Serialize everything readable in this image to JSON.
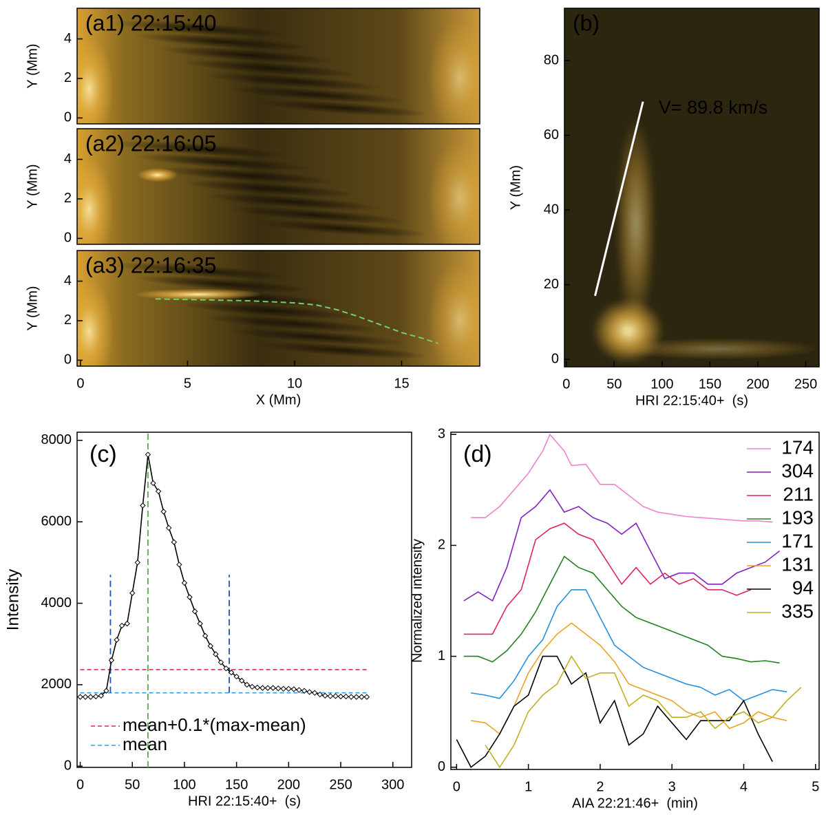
{
  "chart_data": [
    {
      "type": "image",
      "title": "(a1) 22:15:40",
      "xlim": [
        -0.16,
        18.65
      ],
      "ylim": [
        -0.3,
        5.55
      ],
      "yticks": [
        0,
        2,
        4
      ],
      "ylabel": "Y (Mm)"
    },
    {
      "type": "image",
      "title": "(a2) 22:16:05",
      "xlim": [
        -0.16,
        18.65
      ],
      "ylim": [
        -0.3,
        5.55
      ],
      "yticks": [
        0,
        2,
        4
      ],
      "ylabel": "Y (Mm)"
    },
    {
      "type": "image",
      "title": "(a3) 22:16:35",
      "xlim": [
        -0.16,
        18.65
      ],
      "ylim": [
        -0.3,
        5.55
      ],
      "xticks": [
        0,
        5,
        10,
        15
      ],
      "yticks": [
        0,
        2,
        4
      ],
      "xlabel": "X (Mm)",
      "ylabel": "Y (Mm)",
      "curve": {
        "color": "#70d070",
        "x": [
          3.5,
          6,
          8,
          10,
          11,
          12,
          13,
          14,
          15,
          16,
          16.7
        ],
        "y": [
          3.1,
          3.05,
          3.0,
          2.9,
          2.8,
          2.55,
          2.2,
          1.8,
          1.4,
          1.1,
          0.85
        ]
      }
    },
    {
      "type": "image",
      "title": "(b)",
      "xlim": [
        -2,
        264
      ],
      "ylim": [
        -2,
        94
      ],
      "xticks": [
        0,
        50,
        100,
        150,
        200,
        250
      ],
      "yticks": [
        0,
        20,
        40,
        60,
        80
      ],
      "xlabel": "HRI 22:15:40+  (s)",
      "ylabel": "Y (Mm)",
      "fit_line": {
        "color": "#ffffff",
        "x": [
          30,
          80
        ],
        "y": [
          17,
          69
        ]
      },
      "annotation": "V= 89.8 km/s"
    },
    {
      "type": "line",
      "title": "(c)",
      "xlim": [
        -3,
        318
      ],
      "ylim": [
        -30,
        8200
      ],
      "xticks": [
        0,
        50,
        100,
        150,
        200,
        250,
        300
      ],
      "yticks": [
        0,
        2000,
        4000,
        6000,
        8000
      ],
      "xlabel": "HRI 22:15:40+  (s)",
      "ylabel": "Intensity",
      "x": [
        0,
        5,
        10,
        15,
        20,
        25,
        30,
        35,
        40,
        45,
        50,
        55,
        60,
        65,
        70,
        75,
        80,
        85,
        90,
        95,
        100,
        105,
        110,
        115,
        120,
        125,
        130,
        135,
        140,
        145,
        150,
        155,
        160,
        165,
        170,
        175,
        180,
        185,
        190,
        195,
        200,
        205,
        210,
        215,
        220,
        225,
        230,
        235,
        240,
        245,
        250,
        255,
        260,
        265,
        270,
        275
      ],
      "values": [
        1700,
        1700,
        1700,
        1710,
        1730,
        1850,
        2600,
        3100,
        3450,
        3500,
        4250,
        5000,
        6400,
        7650,
        6950,
        6750,
        6250,
        5850,
        5500,
        4950,
        4500,
        4150,
        3800,
        3500,
        3200,
        2950,
        2750,
        2550,
        2400,
        2300,
        2200,
        2100,
        2000,
        1950,
        1930,
        1920,
        1920,
        1920,
        1910,
        1900,
        1900,
        1890,
        1870,
        1850,
        1820,
        1800,
        1760,
        1730,
        1720,
        1720,
        1710,
        1710,
        1700,
        1700,
        1700,
        1700
      ],
      "color": "#000000",
      "reference_lines": [
        {
          "orientation": "h",
          "value": 2370,
          "span": [
            0,
            275
          ],
          "color": "#e0206a",
          "label": "mean+0.1*(max-mean)"
        },
        {
          "orientation": "h",
          "value": 1800,
          "span": [
            0,
            275
          ],
          "color": "#30a0e0",
          "label": "mean"
        },
        {
          "orientation": "v",
          "value": 29,
          "span": [
            1800,
            4700
          ],
          "color": "#2050b0"
        },
        {
          "orientation": "v",
          "value": 143,
          "span": [
            1800,
            4700
          ],
          "color": "#2050b0"
        },
        {
          "orientation": "v",
          "value": 65,
          "span": [
            -30,
            8200
          ],
          "color": "#50b040"
        }
      ]
    },
    {
      "type": "multiline",
      "title": "(d)",
      "xlim": [
        -0.08,
        5.05
      ],
      "ylim": [
        -0.02,
        3.02
      ],
      "xticks": [
        0,
        1,
        2,
        3,
        4,
        5
      ],
      "yticks": [
        0,
        1,
        2,
        3
      ],
      "xlabel": "AIA 22:21:46+  (min)",
      "ylabel": "Normalized intensity",
      "series": [
        {
          "name": "174",
          "color": "#f080d0",
          "x": [
            0.2,
            0.4,
            0.6,
            0.8,
            1.0,
            1.2,
            1.3,
            1.5,
            1.6,
            1.8,
            2.0,
            2.2,
            2.4,
            2.6,
            2.8,
            3.0,
            3.2,
            3.4,
            3.6,
            3.8,
            4.0,
            4.2,
            4.4
          ],
          "values": [
            2.25,
            2.25,
            2.35,
            2.5,
            2.65,
            2.85,
            3.0,
            2.85,
            2.72,
            2.73,
            2.55,
            2.55,
            2.45,
            2.35,
            2.3,
            2.28,
            2.26,
            2.25,
            2.24,
            2.23,
            2.22,
            2.22,
            2.21
          ]
        },
        {
          "name": "304",
          "color": "#8020c0",
          "x": [
            0.1,
            0.3,
            0.5,
            0.7,
            0.9,
            1.1,
            1.3,
            1.5,
            1.7,
            1.9,
            2.1,
            2.3,
            2.5,
            2.7,
            2.9,
            3.1,
            3.3,
            3.5,
            3.7,
            3.9,
            4.1,
            4.3,
            4.5
          ],
          "values": [
            1.5,
            1.58,
            1.5,
            1.8,
            2.25,
            2.35,
            2.5,
            2.3,
            2.35,
            2.25,
            2.2,
            2.1,
            2.2,
            1.95,
            1.7,
            1.75,
            1.75,
            1.65,
            1.65,
            1.75,
            1.8,
            1.85,
            1.95
          ]
        },
        {
          "name": "211",
          "color": "#e0206a",
          "x": [
            0.1,
            0.3,
            0.5,
            0.7,
            0.9,
            1.1,
            1.3,
            1.5,
            1.7,
            1.9,
            2.1,
            2.3,
            2.5,
            2.7,
            2.9,
            3.1,
            3.3,
            3.5,
            3.7,
            3.9,
            4.1
          ],
          "values": [
            1.2,
            1.2,
            1.2,
            1.45,
            1.6,
            2.05,
            2.15,
            2.2,
            2.1,
            2.05,
            1.85,
            1.65,
            1.8,
            1.65,
            1.75,
            1.65,
            1.7,
            1.6,
            1.6,
            1.55,
            1.6
          ]
        },
        {
          "name": "193",
          "color": "#208020",
          "x": [
            0.1,
            0.3,
            0.5,
            0.7,
            0.9,
            1.1,
            1.3,
            1.5,
            1.7,
            1.9,
            2.1,
            2.3,
            2.5,
            2.7,
            2.9,
            3.1,
            3.3,
            3.5,
            3.7,
            3.9,
            4.1,
            4.3,
            4.5
          ],
          "values": [
            1.0,
            1.0,
            0.95,
            1.05,
            1.2,
            1.4,
            1.65,
            1.9,
            1.8,
            1.75,
            1.6,
            1.45,
            1.35,
            1.3,
            1.25,
            1.2,
            1.15,
            1.1,
            1.0,
            0.98,
            0.95,
            0.96,
            0.94
          ]
        },
        {
          "name": "171",
          "color": "#2090e0",
          "x": [
            0.2,
            0.4,
            0.6,
            0.8,
            1.0,
            1.2,
            1.4,
            1.6,
            1.8,
            2.0,
            2.2,
            2.4,
            2.6,
            2.8,
            3.0,
            3.2,
            3.4,
            3.6,
            3.8,
            4.0,
            4.2,
            4.4,
            4.6
          ],
          "values": [
            0.67,
            0.65,
            0.62,
            0.78,
            1.0,
            1.15,
            1.45,
            1.6,
            1.6,
            1.35,
            1.1,
            1.0,
            0.9,
            0.85,
            0.8,
            0.75,
            0.72,
            0.65,
            0.7,
            0.6,
            0.65,
            0.7,
            0.68
          ]
        },
        {
          "name": "131",
          "color": "#f0a020",
          "x": [
            0.2,
            0.4,
            0.6,
            0.8,
            1.0,
            1.2,
            1.4,
            1.6,
            1.8,
            2.0,
            2.2,
            2.4,
            2.6,
            2.8,
            3.0,
            3.2,
            3.4,
            3.6,
            3.8,
            4.0,
            4.2,
            4.4,
            4.6
          ],
          "values": [
            0.42,
            0.4,
            0.3,
            0.55,
            0.85,
            1.05,
            1.2,
            1.3,
            1.2,
            1.1,
            0.95,
            0.75,
            0.7,
            0.65,
            0.6,
            0.5,
            0.45,
            0.5,
            0.35,
            0.4,
            0.5,
            0.45,
            0.42
          ]
        },
        {
          "name": "94",
          "color": "#000000",
          "x": [
            0.0,
            0.2,
            0.4,
            0.6,
            0.8,
            1.0,
            1.2,
            1.4,
            1.6,
            1.8,
            2.0,
            2.2,
            2.4,
            2.6,
            2.8,
            3.0,
            3.2,
            3.4,
            3.6,
            3.8,
            4.0,
            4.2,
            4.4
          ],
          "values": [
            0.25,
            0.0,
            0.1,
            0.3,
            0.55,
            0.65,
            1.0,
            1.0,
            0.75,
            0.85,
            0.4,
            0.6,
            0.2,
            0.3,
            0.55,
            0.4,
            0.25,
            0.42,
            0.42,
            0.42,
            0.6,
            0.3,
            0.05
          ]
        },
        {
          "name": "335",
          "color": "#c0b020",
          "x": [
            0.4,
            0.6,
            0.8,
            1.0,
            1.2,
            1.4,
            1.6,
            1.8,
            2.0,
            2.2,
            2.4,
            2.6,
            2.8,
            3.0,
            3.2,
            3.4,
            3.6,
            3.8,
            4.0,
            4.2,
            4.4,
            4.6,
            4.8
          ],
          "values": [
            0.2,
            0.0,
            0.2,
            0.5,
            0.65,
            0.75,
            1.0,
            0.8,
            0.85,
            0.85,
            0.55,
            0.65,
            0.6,
            0.45,
            0.45,
            0.5,
            0.35,
            0.45,
            0.5,
            0.4,
            0.45,
            0.6,
            0.72
          ]
        }
      ]
    }
  ]
}
